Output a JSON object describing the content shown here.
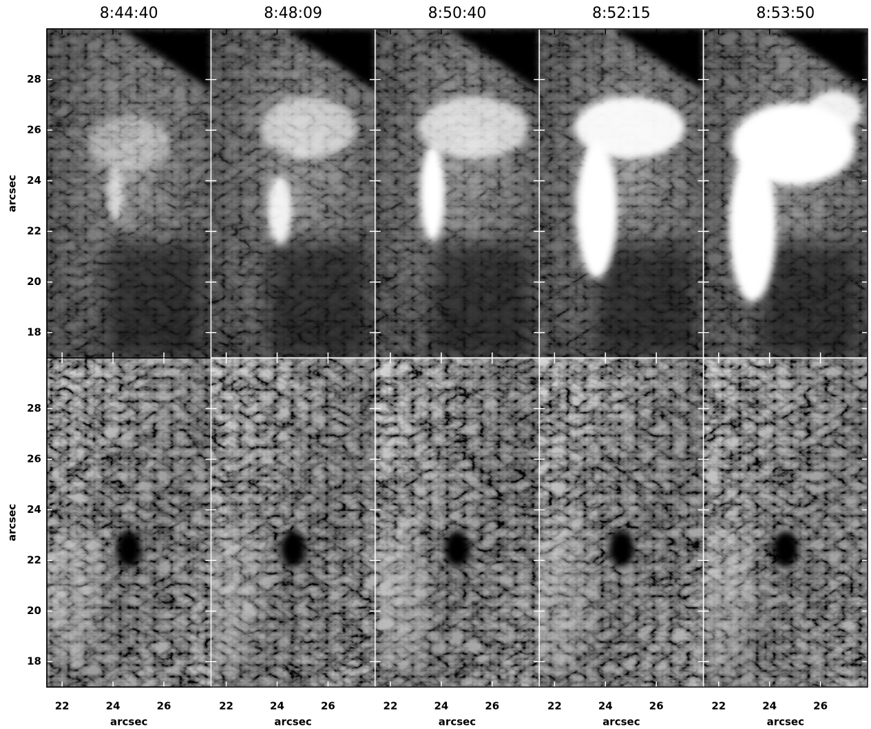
{
  "columns": [
    "8:44:40",
    "8:48:09",
    "8:50:40",
    "8:52:15",
    "8:53:50"
  ],
  "xlabel": "arcsec",
  "ylabel": "arcsec",
  "xlim": [
    21.4,
    27.85
  ],
  "ylim": [
    17,
    30
  ],
  "xticks": [
    22,
    24,
    26
  ],
  "yticks": [
    18,
    20,
    22,
    24,
    26,
    28
  ]
}
